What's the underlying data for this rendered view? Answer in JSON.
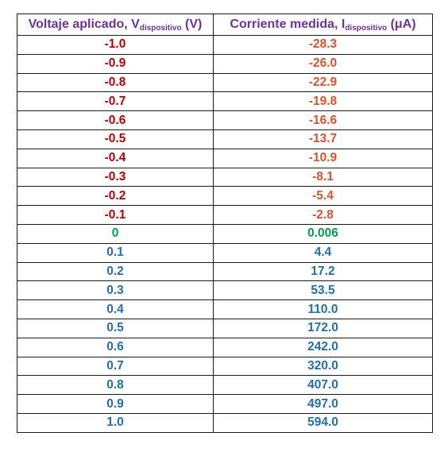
{
  "header": {
    "col1": {
      "main": "Voltaje aplicado, V",
      "sub": "dispositivo",
      "unit": " (V)"
    },
    "col2": {
      "main": "Corriente medida, I",
      "sub": "dispositivo",
      "unit": " (μA)"
    }
  },
  "colors": {
    "header": "#7030a0",
    "negative_voltage": "#c00000",
    "negative_current": "#e2502a",
    "zero": "#00a050",
    "positive": "#1f6fb2"
  },
  "rows": [
    {
      "v": "-1.0",
      "i": "-28.3",
      "sign": "neg"
    },
    {
      "v": "-0.9",
      "i": "-26.0",
      "sign": "neg"
    },
    {
      "v": "-0.8",
      "i": "-22.9",
      "sign": "neg"
    },
    {
      "v": "-0.7",
      "i": "-19.8",
      "sign": "neg"
    },
    {
      "v": "-0.6",
      "i": "-16.6",
      "sign": "neg"
    },
    {
      "v": "-0.5",
      "i": "-13.7",
      "sign": "neg"
    },
    {
      "v": "-0.4",
      "i": "-10.9",
      "sign": "neg"
    },
    {
      "v": "-0.3",
      "i": "-8.1",
      "sign": "neg"
    },
    {
      "v": "-0.2",
      "i": "-5.4",
      "sign": "neg"
    },
    {
      "v": "-0.1",
      "i": "-2.8",
      "sign": "neg"
    },
    {
      "v": "0",
      "i": "0.006",
      "sign": "zero"
    },
    {
      "v": "0.1",
      "i": "4.4",
      "sign": "pos"
    },
    {
      "v": "0.2",
      "i": "17.2",
      "sign": "pos"
    },
    {
      "v": "0.3",
      "i": "53.5",
      "sign": "pos"
    },
    {
      "v": "0.4",
      "i": "110.0",
      "sign": "pos"
    },
    {
      "v": "0.5",
      "i": "172.0",
      "sign": "pos"
    },
    {
      "v": "0.6",
      "i": "242.0",
      "sign": "pos"
    },
    {
      "v": "0.7",
      "i": "320.0",
      "sign": "pos"
    },
    {
      "v": "0.8",
      "i": "407.0",
      "sign": "pos"
    },
    {
      "v": "0.9",
      "i": "497.0",
      "sign": "pos"
    },
    {
      "v": "1.0",
      "i": "594.0",
      "sign": "pos"
    }
  ]
}
